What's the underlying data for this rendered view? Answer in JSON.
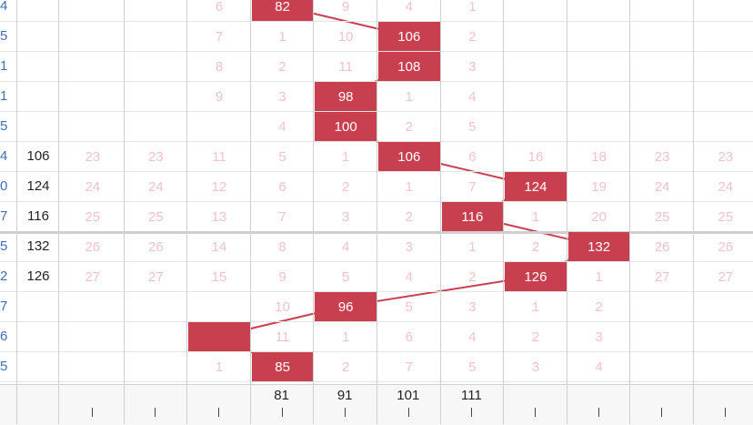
{
  "colors": {
    "highlight": "#c8404f",
    "faded": "#f1c3c8",
    "index": "#3f6fb5",
    "line": "#c8404f"
  },
  "x_axis_labels": [
    "",
    "",
    "",
    "81",
    "91",
    "101",
    "111",
    "",
    "",
    "",
    ""
  ],
  "rows": [
    {
      "idx": "4",
      "val": "",
      "cells": [
        "",
        "",
        "6",
        "82",
        "9",
        "4",
        "1",
        "",
        "",
        "",
        ""
      ],
      "hl": 3
    },
    {
      "idx": "5",
      "val": "",
      "cells": [
        "",
        "",
        "7",
        "1",
        "10",
        "106",
        "2",
        "",
        "",
        "",
        ""
      ],
      "hl": 5
    },
    {
      "idx": "1",
      "val": "",
      "cells": [
        "",
        "",
        "8",
        "2",
        "11",
        "108",
        "3",
        "",
        "",
        "",
        ""
      ],
      "hl": 5
    },
    {
      "idx": "1",
      "val": "",
      "cells": [
        "",
        "",
        "9",
        "3",
        "98",
        "1",
        "4",
        "",
        "",
        "",
        ""
      ],
      "hl": 4
    },
    {
      "idx": "5",
      "val": "",
      "cells": [
        "",
        "",
        "",
        "4",
        "100",
        "2",
        "5",
        "",
        "",
        "",
        ""
      ],
      "hl": 4
    },
    {
      "idx": "4",
      "val": "106",
      "cells": [
        "23",
        "23",
        "11",
        "5",
        "1",
        "106",
        "6",
        "16",
        "18",
        "23",
        "23"
      ],
      "hl": 5
    },
    {
      "idx": "0",
      "val": "124",
      "cells": [
        "24",
        "24",
        "12",
        "6",
        "2",
        "1",
        "7",
        "124",
        "19",
        "24",
        "24"
      ],
      "hl": 7
    },
    {
      "idx": "7",
      "val": "116",
      "cells": [
        "25",
        "25",
        "13",
        "7",
        "3",
        "2",
        "116",
        "1",
        "20",
        "25",
        "25"
      ],
      "hl": 6
    },
    {
      "idx": "5",
      "val": "132",
      "cells": [
        "26",
        "26",
        "14",
        "8",
        "4",
        "3",
        "1",
        "2",
        "132",
        "26",
        "26"
      ],
      "hl": 8
    },
    {
      "idx": "2",
      "val": "126",
      "cells": [
        "27",
        "27",
        "15",
        "9",
        "5",
        "4",
        "2",
        "126",
        "1",
        "27",
        "27"
      ],
      "hl": 7
    },
    {
      "idx": "7",
      "val": "",
      "cells": [
        "",
        "",
        "",
        "10",
        "96",
        "5",
        "3",
        "1",
        "2",
        "",
        ""
      ],
      "hl": 4
    },
    {
      "idx": "6",
      "val": "",
      "cells": [
        "",
        "",
        "",
        "11",
        "1",
        "6",
        "4",
        "2",
        "3",
        "",
        ""
      ],
      "hl": 2
    },
    {
      "idx": "5",
      "val": "",
      "cells": [
        "",
        "",
        "1",
        "85",
        "2",
        "7",
        "5",
        "3",
        "4",
        "",
        ""
      ],
      "hl": 3
    }
  ]
}
